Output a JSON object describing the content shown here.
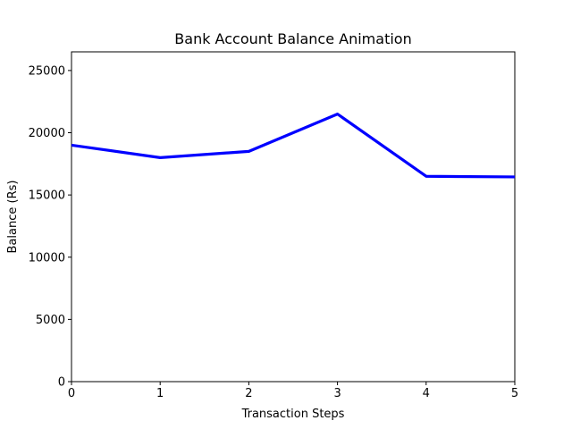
{
  "chart_data": {
    "type": "line",
    "title": "Bank Account Balance Animation",
    "xlabel": "Transaction Steps",
    "ylabel": "Balance (Rs)",
    "xlim": [
      0,
      5
    ],
    "ylim": [
      0,
      26500
    ],
    "xticks": [
      0,
      1,
      2,
      3,
      4,
      5
    ],
    "yticks": [
      0,
      5000,
      10000,
      15000,
      20000,
      25000
    ],
    "grid": false,
    "series": [
      {
        "color": "#0000ff",
        "x": [
          0,
          1,
          2,
          3,
          4,
          5
        ],
        "y": [
          19000,
          18000,
          18500,
          21500,
          16500,
          16450
        ]
      }
    ]
  }
}
